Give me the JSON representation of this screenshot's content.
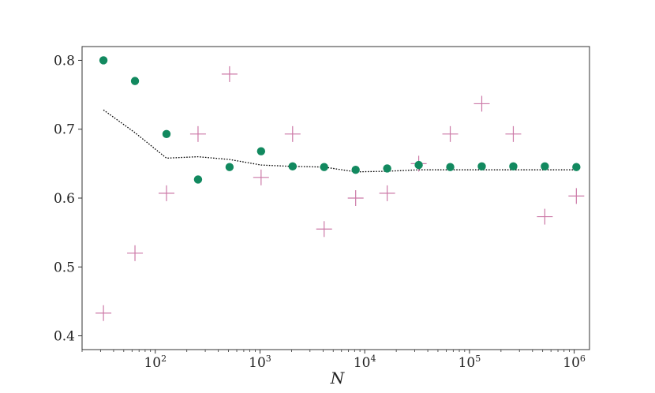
{
  "chart_data": {
    "type": "scatter",
    "title": "",
    "xlabel": "N",
    "ylabel": "",
    "xscale": "log",
    "xlim": [
      20,
      1400000
    ],
    "ylim": [
      0.38,
      0.82
    ],
    "x_ticks": [
      {
        "value": 100,
        "base": "10",
        "exp": "2"
      },
      {
        "value": 1000,
        "base": "10",
        "exp": "3"
      },
      {
        "value": 10000,
        "base": "10",
        "exp": "4"
      },
      {
        "value": 100000,
        "base": "10",
        "exp": "5"
      },
      {
        "value": 1000000,
        "base": "10",
        "exp": "6"
      }
    ],
    "y_ticks": [
      {
        "value": 0.4,
        "label": "0.4"
      },
      {
        "value": 0.5,
        "label": "0.5"
      },
      {
        "value": 0.6,
        "label": "0.6"
      },
      {
        "value": 0.7,
        "label": "0.7"
      },
      {
        "value": 0.8,
        "label": "0.8"
      }
    ],
    "grid": false,
    "legend": "none",
    "x": [
      32,
      64,
      128,
      256,
      512,
      1024,
      2048,
      4096,
      8192,
      16384,
      32768,
      65536,
      131072,
      262144,
      524288,
      1048576
    ],
    "series": [
      {
        "kind": "dotted-line",
        "color": "#000000",
        "values": [
          0.728,
          0.695,
          0.658,
          0.66,
          0.656,
          0.648,
          0.646,
          0.645,
          0.638,
          0.639,
          0.641,
          0.641,
          0.641,
          0.641,
          0.641,
          0.641
        ]
      },
      {
        "kind": "circle-markers",
        "color": "#12895f",
        "values": [
          0.8,
          0.77,
          0.693,
          0.627,
          0.645,
          0.668,
          0.646,
          0.645,
          0.641,
          0.643,
          0.648,
          0.645,
          0.646,
          0.646,
          0.646,
          0.645
        ]
      },
      {
        "kind": "plus-markers",
        "color": "#cc79a7",
        "values": [
          0.433,
          0.52,
          0.607,
          0.693,
          0.78,
          0.63,
          0.693,
          0.555,
          0.6,
          0.607,
          0.65,
          0.693,
          0.737,
          0.693,
          0.573,
          0.603
        ]
      }
    ]
  }
}
